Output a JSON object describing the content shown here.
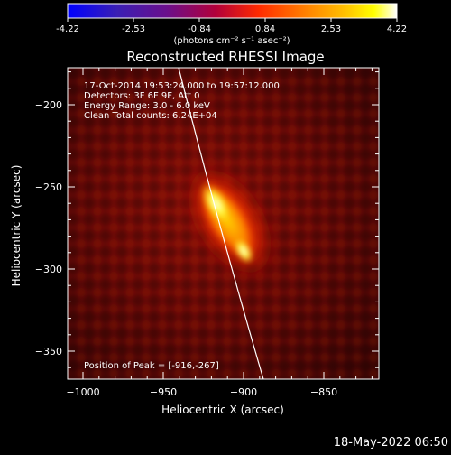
{
  "colorbar": {
    "ticks": [
      "-4.22",
      "-2.53",
      "-0.84",
      "0.84",
      "2.53",
      "4.22"
    ],
    "units": "(photons cm⁻² s⁻¹ asec⁻²)",
    "colors": [
      "#0000ff",
      "#3a1fb4",
      "#6a0f8c",
      "#b2003a",
      "#ff2a00",
      "#ff7f00",
      "#ffbf00",
      "#ffff00",
      "#ffffff"
    ]
  },
  "title": "Reconstructed RHESSI Image",
  "annotations": {
    "time_range": "17-Oct-2014 19:53:24.000 to 19:57:12.000",
    "detectors": "Detectors: 3F 6F 9F, Att 0",
    "energy_range": "Energy Range: 3.0 - 6.0 keV",
    "clean": "Clean    Total counts: 6.24E+04",
    "peak": "Position of Peak = [-916,-267]"
  },
  "axes": {
    "xlabel": "Heliocentric X (arcsec)",
    "ylabel": "Heliocentric Y (arcsec)",
    "x_ticks": [
      "−1000",
      "−950",
      "−900",
      "−850"
    ],
    "y_ticks": [
      "−200",
      "−250",
      "−300",
      "−350"
    ]
  },
  "footer": {
    "timestamp": "18-May-2022 06:50"
  }
}
